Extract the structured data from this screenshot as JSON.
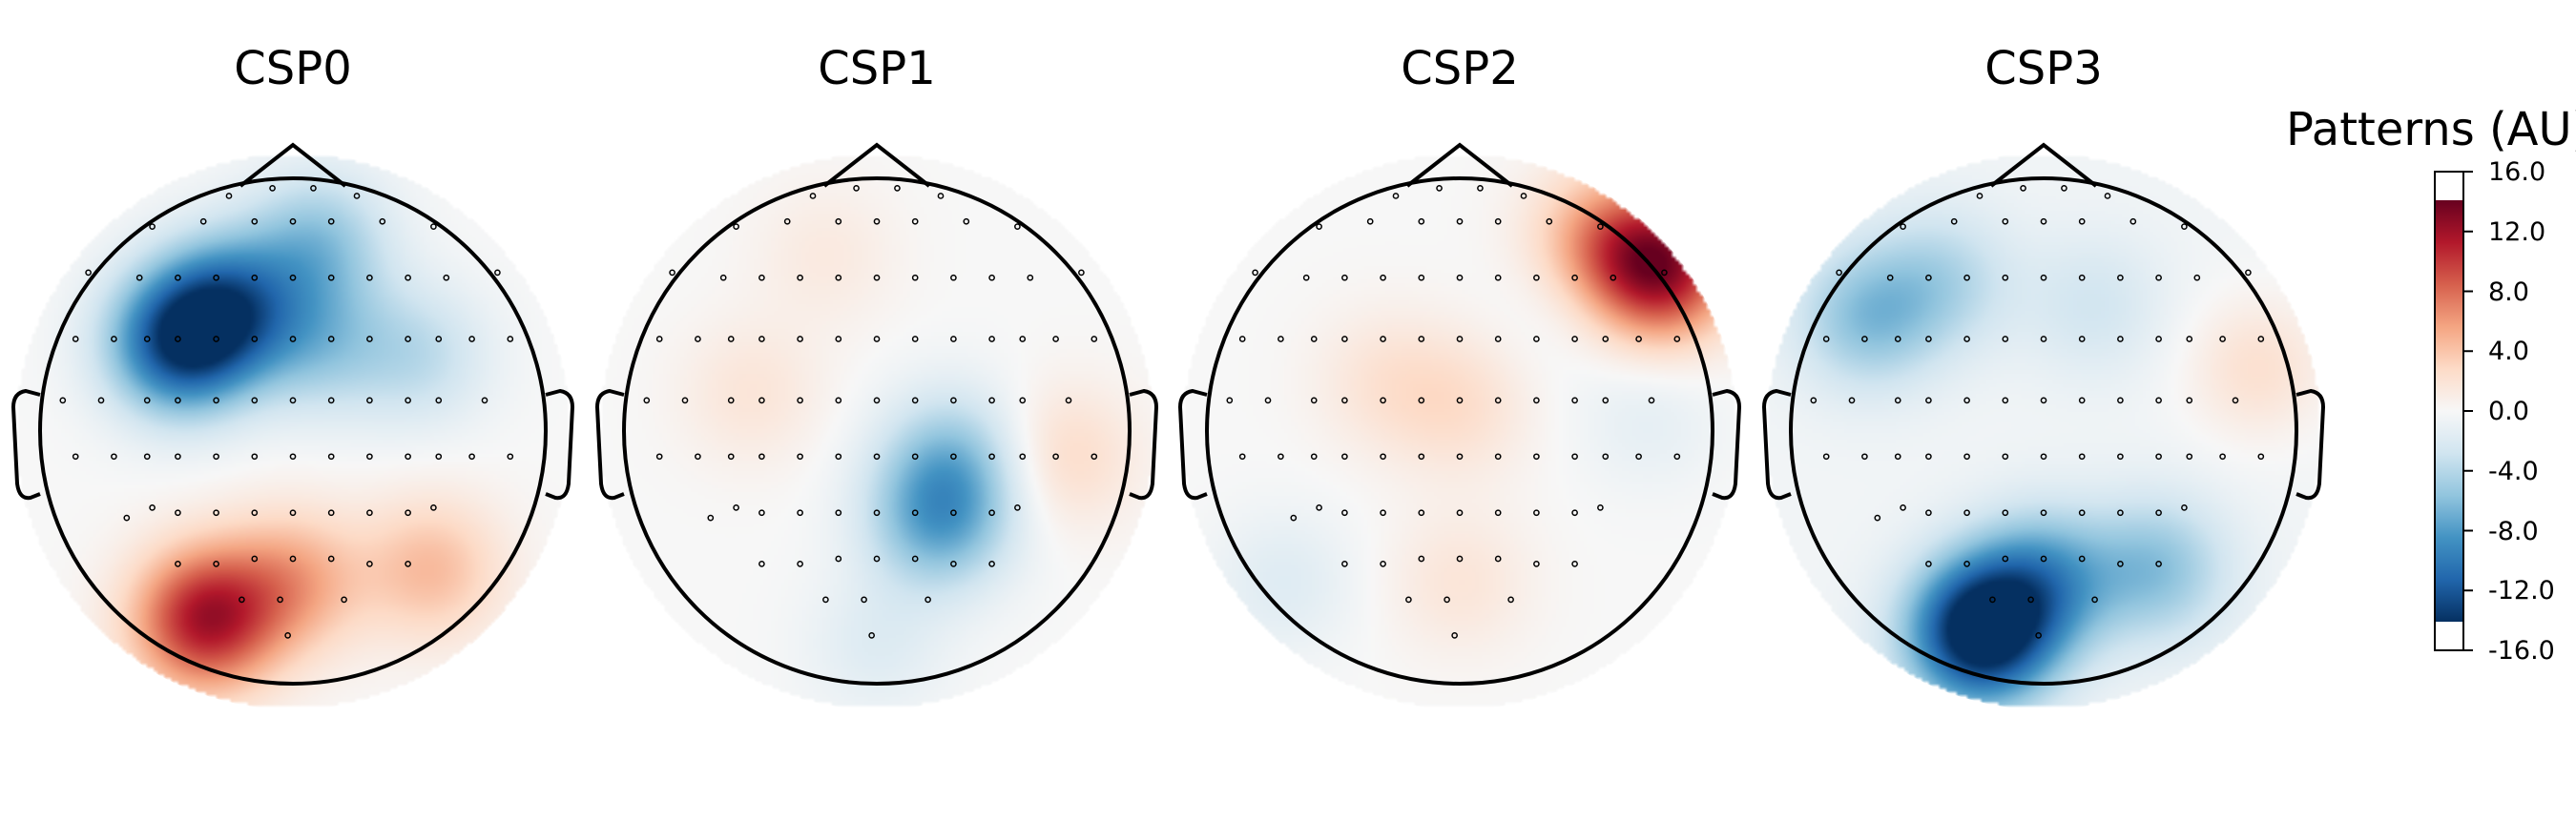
{
  "chart_data": {
    "type": "heatmap",
    "subtype": "topomap",
    "colorbar": {
      "title": "Patterns (AU)",
      "colormap": "RdBu_r",
      "range": [
        -16.0,
        16.0
      ],
      "ticks": [
        "16.0",
        "12.0",
        "8.0",
        "4.0",
        "0.0",
        "-4.0",
        "-8.0",
        "-12.0",
        "-16.0"
      ],
      "tick_values": [
        16,
        12,
        8,
        4,
        0,
        -4,
        -8,
        -12,
        -16
      ]
    },
    "maps": [
      {
        "title": "CSP0",
        "sources": [
          {
            "x": -0.45,
            "y": 0.35,
            "v": -14
          },
          {
            "x": -0.25,
            "y": 0.5,
            "v": -10
          },
          {
            "x": 0.1,
            "y": 0.35,
            "v": -5
          },
          {
            "x": 0.5,
            "y": 0.3,
            "v": -4
          },
          {
            "x": 0.1,
            "y": 0.75,
            "v": -6
          },
          {
            "x": -0.35,
            "y": -0.75,
            "v": 13
          },
          {
            "x": 0.0,
            "y": -0.6,
            "v": 6
          },
          {
            "x": 0.55,
            "y": -0.55,
            "v": 5
          }
        ],
        "base": 0
      },
      {
        "title": "CSP1",
        "sources": [
          {
            "x": 0.25,
            "y": -0.35,
            "v": -8
          },
          {
            "x": 0.3,
            "y": -0.1,
            "v": -5
          },
          {
            "x": -0.5,
            "y": 0.15,
            "v": 2
          },
          {
            "x": 0.75,
            "y": -0.1,
            "v": 3
          },
          {
            "x": -0.2,
            "y": 0.7,
            "v": 1.5
          },
          {
            "x": 0.0,
            "y": -0.85,
            "v": -2
          }
        ],
        "base": 0
      },
      {
        "title": "CSP2",
        "sources": [
          {
            "x": 0.8,
            "y": 0.65,
            "v": 14
          },
          {
            "x": 0.55,
            "y": 0.75,
            "v": 6
          },
          {
            "x": 0.0,
            "y": 0.1,
            "v": 2.5
          },
          {
            "x": -0.3,
            "y": 0.2,
            "v": 2
          },
          {
            "x": 0.0,
            "y": -0.6,
            "v": 2
          },
          {
            "x": 0.75,
            "y": 0.05,
            "v": -1.5
          },
          {
            "x": 0.45,
            "y": 0.55,
            "v": -1.5
          },
          {
            "x": -0.7,
            "y": -0.6,
            "v": -2
          }
        ],
        "base": 0
      },
      {
        "title": "CSP3",
        "sources": [
          {
            "x": -0.25,
            "y": -0.8,
            "v": -18
          },
          {
            "x": 0.0,
            "y": -0.6,
            "v": -8
          },
          {
            "x": 0.45,
            "y": -0.55,
            "v": -6
          },
          {
            "x": -0.7,
            "y": 0.45,
            "v": -6
          },
          {
            "x": -0.4,
            "y": 0.6,
            "v": -4
          },
          {
            "x": 0.2,
            "y": 0.5,
            "v": -2.5
          },
          {
            "x": 0.85,
            "y": 0.25,
            "v": 3
          }
        ],
        "base": -0.5
      }
    ],
    "sensors": [
      [
        -0.25,
        0.92
      ],
      [
        -0.08,
        0.95
      ],
      [
        0.08,
        0.95
      ],
      [
        0.25,
        0.92
      ],
      [
        -0.55,
        0.8
      ],
      [
        -0.35,
        0.82
      ],
      [
        -0.15,
        0.82
      ],
      [
        0.0,
        0.82
      ],
      [
        0.15,
        0.82
      ],
      [
        0.35,
        0.82
      ],
      [
        0.55,
        0.8
      ],
      [
        -0.8,
        0.62
      ],
      [
        -0.6,
        0.6
      ],
      [
        -0.45,
        0.6
      ],
      [
        -0.3,
        0.6
      ],
      [
        -0.15,
        0.6
      ],
      [
        0.0,
        0.6
      ],
      [
        0.15,
        0.6
      ],
      [
        0.3,
        0.6
      ],
      [
        0.45,
        0.6
      ],
      [
        0.6,
        0.6
      ],
      [
        0.8,
        0.62
      ],
      [
        -0.85,
        0.36
      ],
      [
        -0.7,
        0.36
      ],
      [
        -0.57,
        0.36
      ],
      [
        -0.45,
        0.36
      ],
      [
        -0.3,
        0.36
      ],
      [
        -0.15,
        0.36
      ],
      [
        0.0,
        0.36
      ],
      [
        0.15,
        0.36
      ],
      [
        0.3,
        0.36
      ],
      [
        0.45,
        0.36
      ],
      [
        0.57,
        0.36
      ],
      [
        0.7,
        0.36
      ],
      [
        0.85,
        0.36
      ],
      [
        -0.9,
        0.12
      ],
      [
        -0.75,
        0.12
      ],
      [
        -0.57,
        0.12
      ],
      [
        -0.45,
        0.12
      ],
      [
        -0.3,
        0.12
      ],
      [
        -0.15,
        0.12
      ],
      [
        0.0,
        0.12
      ],
      [
        0.15,
        0.12
      ],
      [
        0.3,
        0.12
      ],
      [
        0.45,
        0.12
      ],
      [
        0.57,
        0.12
      ],
      [
        0.75,
        0.12
      ],
      [
        -0.85,
        -0.1
      ],
      [
        -0.7,
        -0.1
      ],
      [
        -0.57,
        -0.1
      ],
      [
        -0.45,
        -0.1
      ],
      [
        -0.3,
        -0.1
      ],
      [
        -0.15,
        -0.1
      ],
      [
        0.0,
        -0.1
      ],
      [
        0.15,
        -0.1
      ],
      [
        0.3,
        -0.1
      ],
      [
        0.45,
        -0.1
      ],
      [
        0.57,
        -0.1
      ],
      [
        0.7,
        -0.1
      ],
      [
        0.85,
        -0.1
      ],
      [
        -0.65,
        -0.34
      ],
      [
        -0.55,
        -0.3
      ],
      [
        -0.45,
        -0.32
      ],
      [
        -0.3,
        -0.32
      ],
      [
        -0.15,
        -0.32
      ],
      [
        0.0,
        -0.32
      ],
      [
        0.15,
        -0.32
      ],
      [
        0.3,
        -0.32
      ],
      [
        0.45,
        -0.32
      ],
      [
        0.55,
        -0.3
      ],
      [
        -0.45,
        -0.52
      ],
      [
        -0.3,
        -0.52
      ],
      [
        -0.15,
        -0.5
      ],
      [
        0.0,
        -0.5
      ],
      [
        0.15,
        -0.5
      ],
      [
        0.3,
        -0.52
      ],
      [
        0.45,
        -0.52
      ],
      [
        -0.2,
        -0.66
      ],
      [
        -0.05,
        -0.66
      ],
      [
        0.2,
        -0.66
      ],
      [
        -0.02,
        -0.8
      ]
    ]
  }
}
